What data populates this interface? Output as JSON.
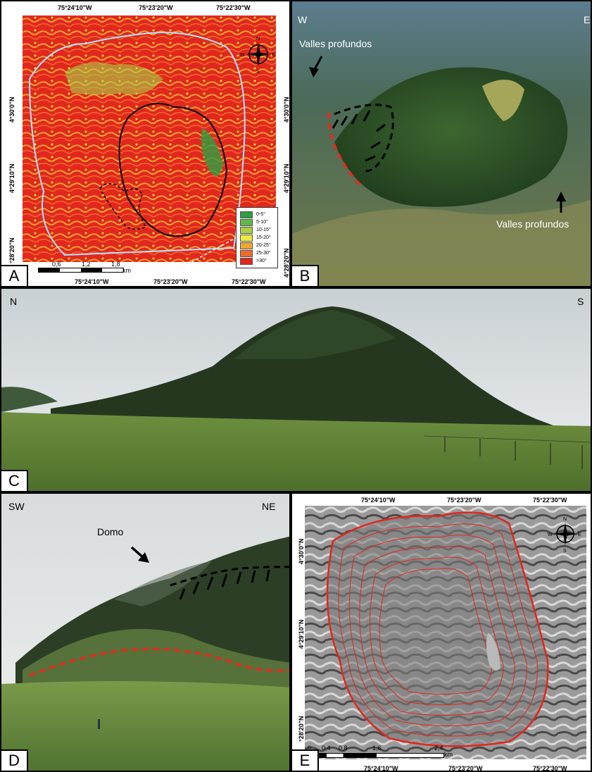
{
  "panels": {
    "a": {
      "label": "A",
      "top_coords": [
        "75°24'10\"W",
        "75°23'20\"W",
        "75°22'30\"W"
      ],
      "bottom_coords": [
        "75°24'10\"W",
        "75°23'20\"W",
        "75°22'30\"W"
      ],
      "left_coords": [
        "4°30'0\"N",
        "4°29'10\"N",
        "°28'20\"N"
      ],
      "right_coords": [
        "4°30'0\"N",
        "4°29'10\"N",
        "4°28'20\"N"
      ],
      "scale_ticks": [
        "0,6",
        "1,2",
        "1,8"
      ],
      "scale_unit": "km",
      "legend": [
        {
          "label": "0-5°",
          "color": "#2e9e3f"
        },
        {
          "label": "5-10°",
          "color": "#5fb84a"
        },
        {
          "label": "10-15°",
          "color": "#a9cf45"
        },
        {
          "label": "15-20°",
          "color": "#ecea3a"
        },
        {
          "label": "20-25°",
          "color": "#f4a531"
        },
        {
          "label": "25-30°",
          "color": "#ef6a2a"
        },
        {
          "label": ">30°",
          "color": "#e0261e"
        }
      ]
    },
    "b": {
      "label": "B",
      "west": "W",
      "east": "E",
      "annotation_top": "Valles profundos",
      "annotation_bottom": "Valles profundos"
    },
    "c": {
      "label": "C",
      "north": "N",
      "south": "S"
    },
    "d": {
      "label": "D",
      "southwest": "SW",
      "northeast": "NE",
      "dome": "Domo"
    },
    "e": {
      "label": "E",
      "top_coords": [
        "75°24'10\"W",
        "75°23'20\"W",
        "75°22'30\"W"
      ],
      "bottom_coords": [
        "75°24'10\"W",
        "75°23'20\"W",
        "75°22'30\"W"
      ],
      "left_coords": [
        "4°30'0\"N",
        "4°29'10\"N",
        "°28'20\"N"
      ],
      "scale_ticks": [
        "0",
        "0,4",
        "0,8",
        "1,6",
        "2,4"
      ],
      "scale_unit": "km"
    }
  }
}
